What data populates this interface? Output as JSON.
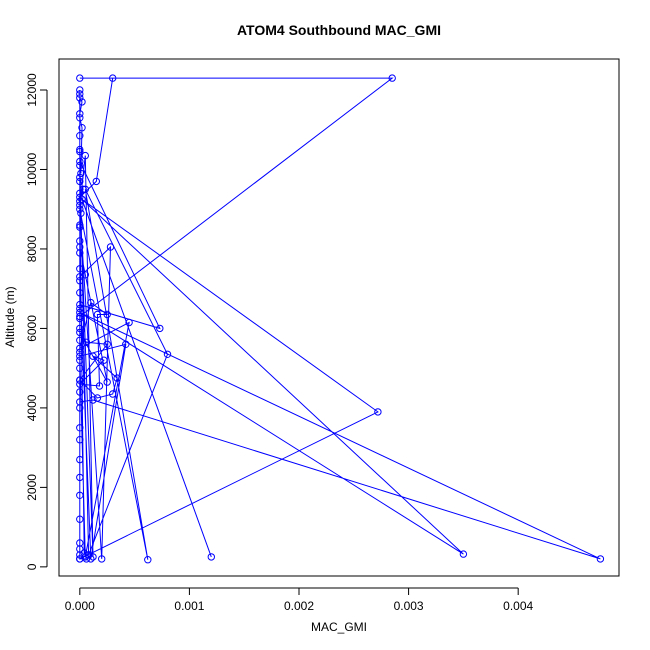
{
  "chart_data": {
    "type": "line",
    "title": "ATOM4 Southbound MAC_GMI",
    "xlabel": "MAC_GMI",
    "ylabel": "Altitude (m)",
    "xlim": [
      -0.00019,
      0.00492
    ],
    "ylim": [
      -230,
      12780
    ],
    "x_ticks": [
      0,
      0.001,
      0.002,
      0.003,
      0.004
    ],
    "x_tick_labels": [
      "0.000",
      "0.001",
      "0.002",
      "0.003",
      "0.004"
    ],
    "y_ticks": [
      0,
      2000,
      4000,
      6000,
      8000,
      10000,
      12000
    ],
    "y_tick_labels": [
      "0",
      "2000",
      "4000",
      "6000",
      "8000",
      "10000",
      "12000"
    ],
    "grid": false,
    "markers": "open-circle",
    "series": [
      {
        "color": "#0000ff",
        "points": [
          [
            0.0,
            12000
          ],
          [
            0.0,
            11800
          ],
          [
            2e-05,
            11700
          ],
          [
            0.0,
            11400
          ],
          [
            0.0,
            10850
          ],
          [
            0.0,
            10500
          ],
          [
            0.0,
            10100
          ],
          [
            0.0,
            9800
          ],
          [
            3e-05,
            9500
          ],
          [
            0.0,
            9200
          ],
          [
            1e-05,
            8900
          ],
          [
            0.0,
            8600
          ],
          [
            0.0,
            8200
          ],
          [
            0.0,
            7900
          ],
          [
            0.0,
            7500
          ],
          [
            0.0,
            7200
          ],
          [
            0.0,
            6900
          ],
          [
            0.0,
            6500
          ],
          [
            0.0,
            6250
          ],
          [
            0.0,
            6000
          ],
          [
            0.0,
            5700
          ],
          [
            0.0,
            5400
          ],
          [
            0.0,
            5200
          ],
          [
            0.0,
            5000
          ],
          [
            0.0,
            4700
          ],
          [
            0.0,
            4400
          ],
          [
            0.0,
            4000
          ],
          [
            0.0,
            3500
          ],
          [
            0.0,
            3200
          ],
          [
            0.0,
            2700
          ],
          [
            0.0,
            2250
          ],
          [
            0.0,
            1800
          ],
          [
            0.0,
            1200
          ],
          [
            0.0,
            600
          ],
          [
            0.0,
            450
          ],
          [
            0.0,
            300
          ],
          [
            0.0,
            200
          ],
          [
            6e-05,
            200
          ],
          [
            4e-05,
            350
          ],
          [
            0.0,
            9100
          ],
          [
            5e-05,
            10350
          ],
          [
            0.00012,
            250
          ],
          [
            0.0,
            9400
          ],
          [
            0.0012,
            250
          ],
          [
            2e-05,
            9250
          ],
          [
            0.00272,
            3900
          ],
          [
            0.0,
            200
          ],
          [
            0.0,
            6300
          ],
          [
            0.00285,
            12300
          ],
          [
            0.0,
            12300
          ],
          [
            0.0003,
            12300
          ],
          [
            0.00015,
            9700
          ],
          [
            0.0,
            9300
          ],
          [
            0.0035,
            320
          ],
          [
            0.0,
            6400
          ],
          [
            0.00475,
            200
          ],
          [
            0.00012,
            4200
          ],
          [
            0.0,
            4150
          ],
          [
            0.0,
            6600
          ],
          [
            0.00073,
            6000
          ],
          [
            0.0,
            10200
          ],
          [
            8e-05,
            300
          ],
          [
            0.0008,
            5350
          ],
          [
            5e-05,
            9500
          ],
          [
            0.00062,
            180
          ],
          [
            0.0,
            9000
          ],
          [
            0.0002,
            200
          ],
          [
            0.00028,
            8050
          ],
          [
            0.0,
            7300
          ],
          [
            0.0001,
            200
          ],
          [
            0.00042,
            5600
          ],
          [
            0.0,
            5300
          ],
          [
            5e-05,
            250
          ],
          [
            0.00045,
            6150
          ],
          [
            0.0,
            5500
          ],
          [
            0.0001,
            6650
          ],
          [
            0.00025,
            6350
          ],
          [
            0.00016,
            6350
          ],
          [
            0.00018,
            4550
          ],
          [
            0.0,
            4600
          ],
          [
            0.00022,
            5200
          ],
          [
            0.00012,
            5300
          ],
          [
            0.00034,
            4750
          ],
          [
            0.0003,
            4350
          ],
          [
            0.00016,
            4250
          ],
          [
            0.0,
            4700
          ],
          [
            0.00025,
            5600
          ],
          [
            6e-05,
            5650
          ],
          [
            0.0,
            5900
          ],
          [
            0.00025,
            4650
          ],
          [
            5e-05,
            7350
          ],
          [
            0.0,
            8050
          ],
          [
            0.0,
            8550
          ],
          [
            0.0,
            9700
          ],
          [
            0.0,
            10450
          ],
          [
            1e-05,
            9900
          ],
          [
            2e-05,
            11050
          ],
          [
            0.0,
            11300
          ],
          [
            0.0,
            11900
          ]
        ]
      }
    ]
  }
}
